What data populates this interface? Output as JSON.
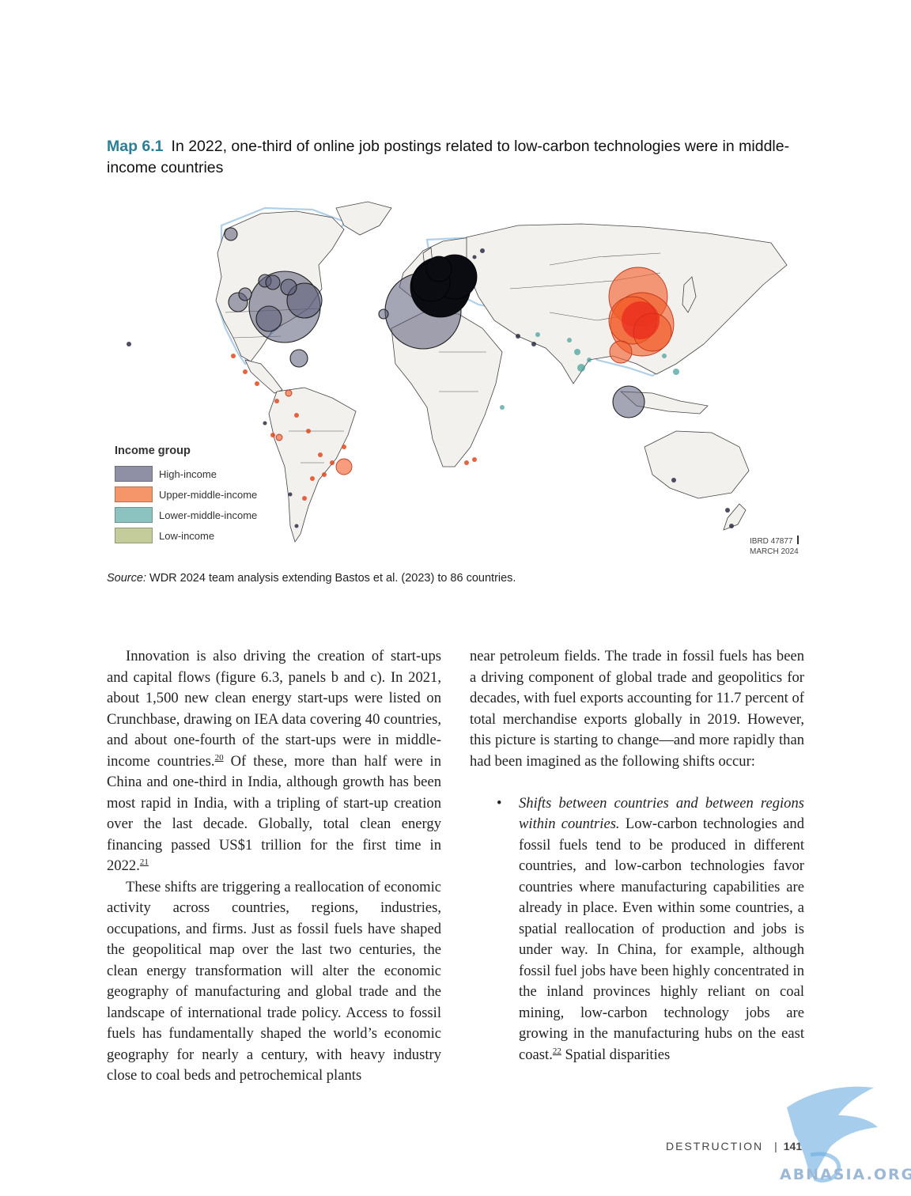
{
  "map": {
    "label": "Map 6.1",
    "title": "In 2022, one-third of online job postings related to low-carbon technologies were in middle-income countries",
    "legend": {
      "title": "Income group",
      "items": [
        {
          "label": "High-income",
          "color": "#8f90a6"
        },
        {
          "label": "Upper-middle-income",
          "color": "#f4956a"
        },
        {
          "label": "Lower-middle-income",
          "color": "#8cc3c1"
        },
        {
          "label": "Low-income",
          "color": "#c3cc9a"
        }
      ]
    },
    "ibrd": {
      "line1": "IBRD 47877",
      "line2": "MARCH 2024"
    },
    "source_label": "Source:",
    "source_text": "WDR 2024 team analysis extending Bastos et al. (2023) to 86 countries."
  },
  "body": {
    "left": {
      "p1": {
        "text_a": "Innovation is also driving the creation of start-ups and capital flows (figure 6.3, panels b and c). In 2021, about 1,500 new clean energy start-ups were listed on Crunchbase, drawing on IEA data covering 40 countries, and about one-fourth of the start-ups were in middle-income countries.",
        "fn_a": "20",
        "text_b": " Of these, more than half were in China and one-third in India, although growth has been most rapid in India, with a tripling of start-up creation over the last decade. Globally, total clean energy financing passed US$1 trillion for the first time in 2022.",
        "fn_b": "21"
      },
      "p2": "These shifts are triggering a reallocation of economic activity across countries, regions, industries, occupations, and firms. Just as fossil fuels have shaped the geopolitical map over the last two centuries, the clean energy transformation will alter the economic geography of manufacturing and global trade and the landscape of international trade policy. Access to fossil fuels has fundamentally shaped the world’s economic geography for nearly a century, with heavy industry close to coal beds and petrochemical plants"
    },
    "right": {
      "p1": "near petroleum fields. The trade in fossil fuels has been a driving component of global trade and geopolitics for decades, with fuel exports accounting for 11.7 percent of total merchandise exports globally in 2019. However, this picture is starting to change—and more rapidly than had been imagined as the following shifts occur:",
      "bullet_symbol": "•",
      "bullet_lead": "Shifts between countries and between regions within countries.",
      "bullet_text_a": " Low-carbon technologies and fossil fuels tend to be produced in different countries, and low-carbon technologies favor countries where manufacturing capabilities are already in place. Even within some countries, a spatial reallocation of production and jobs is under way. In China, for example, although fossil fuel jobs have been highly concentrated in the inland provinces highly reliant on coal mining, low-carbon technology jobs are growing in the manufacturing hubs on the east coast.",
      "fn": "22",
      "bullet_text_b": " Spatial disparities"
    }
  },
  "footer": {
    "section": "DESTRUCTION",
    "separator": "|",
    "page": "141"
  },
  "watermark": {
    "text": "ABNASIA.ORG"
  }
}
